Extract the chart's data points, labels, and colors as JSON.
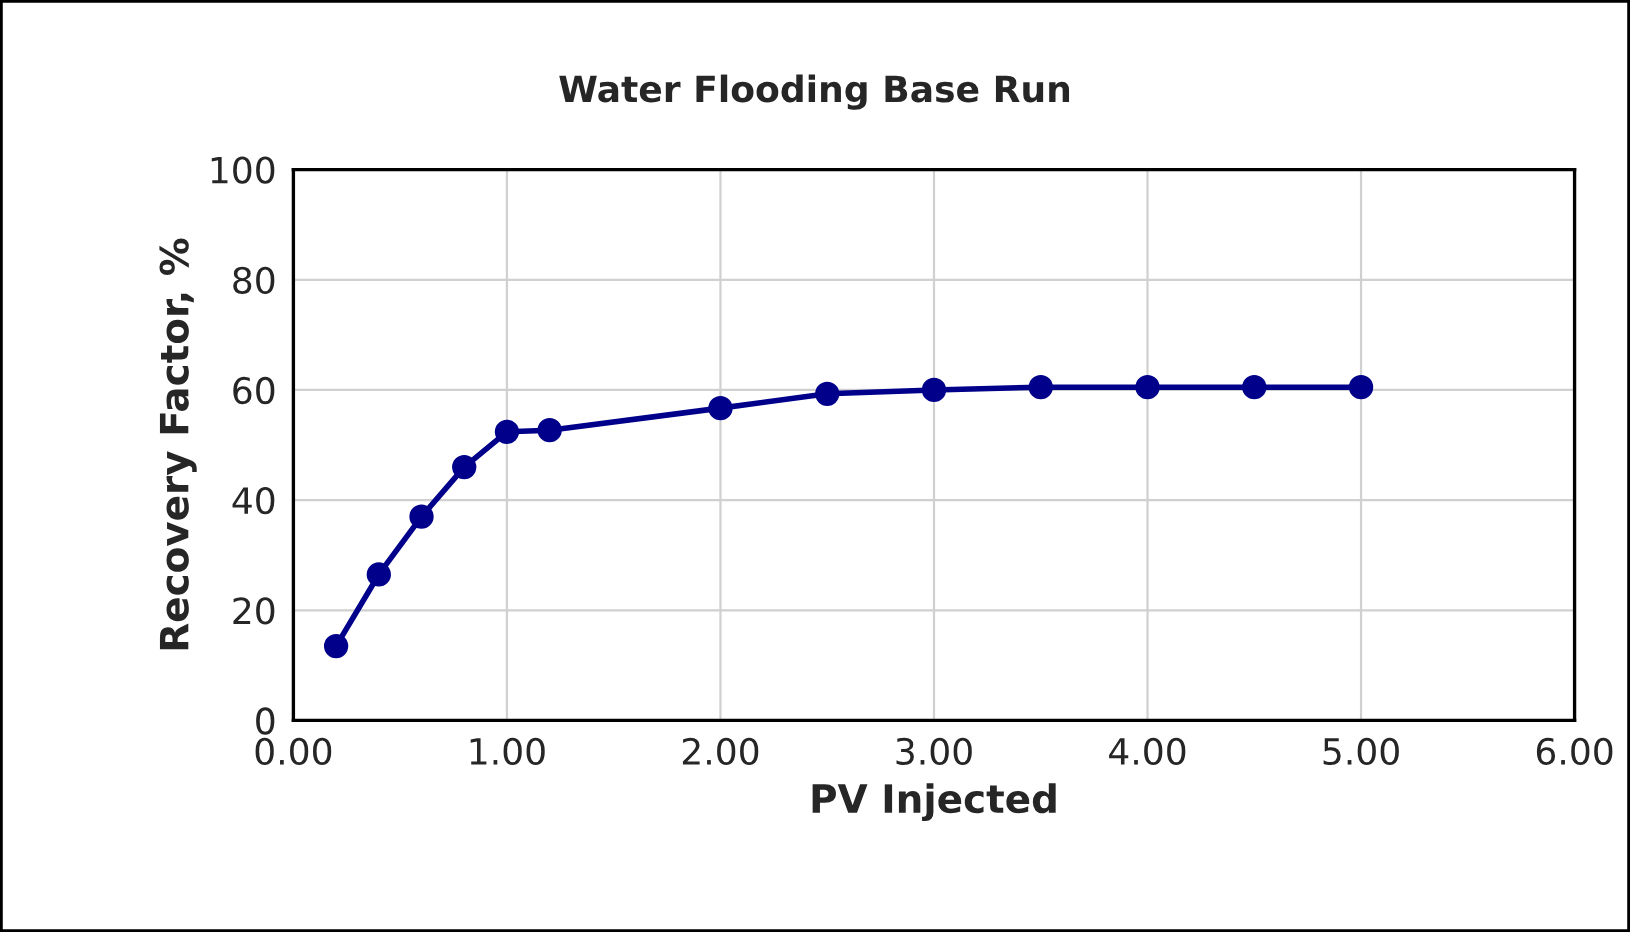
{
  "chart_data": {
    "type": "line",
    "title": "Water Flooding Base Run",
    "xlabel": "PV Injected",
    "ylabel": "Recovery Factor, %",
    "x": [
      0.2,
      0.4,
      0.6,
      0.8,
      1.0,
      1.2,
      2.0,
      2.5,
      3.0,
      3.5,
      4.0,
      4.5,
      5.0
    ],
    "series": [
      {
        "color": "#00008b",
        "values": [
          13.5,
          26.5,
          37,
          46,
          52.4,
          52.7,
          56.7,
          59.3,
          60,
          60.5,
          60.5,
          60.5,
          60.5
        ]
      }
    ],
    "xlim": [
      0,
      6
    ],
    "ylim": [
      0,
      100
    ],
    "xticks": [
      {
        "value": 0,
        "label": "0.00"
      },
      {
        "value": 1,
        "label": "1.00"
      },
      {
        "value": 2,
        "label": "2.00"
      },
      {
        "value": 3,
        "label": "3.00"
      },
      {
        "value": 4,
        "label": "4.00"
      },
      {
        "value": 5,
        "label": "5.00"
      },
      {
        "value": 6,
        "label": "6.00"
      }
    ],
    "yticks": [
      0,
      20,
      40,
      60,
      80,
      100
    ],
    "grid": true,
    "marker": "circle",
    "line_style": "solid"
  }
}
